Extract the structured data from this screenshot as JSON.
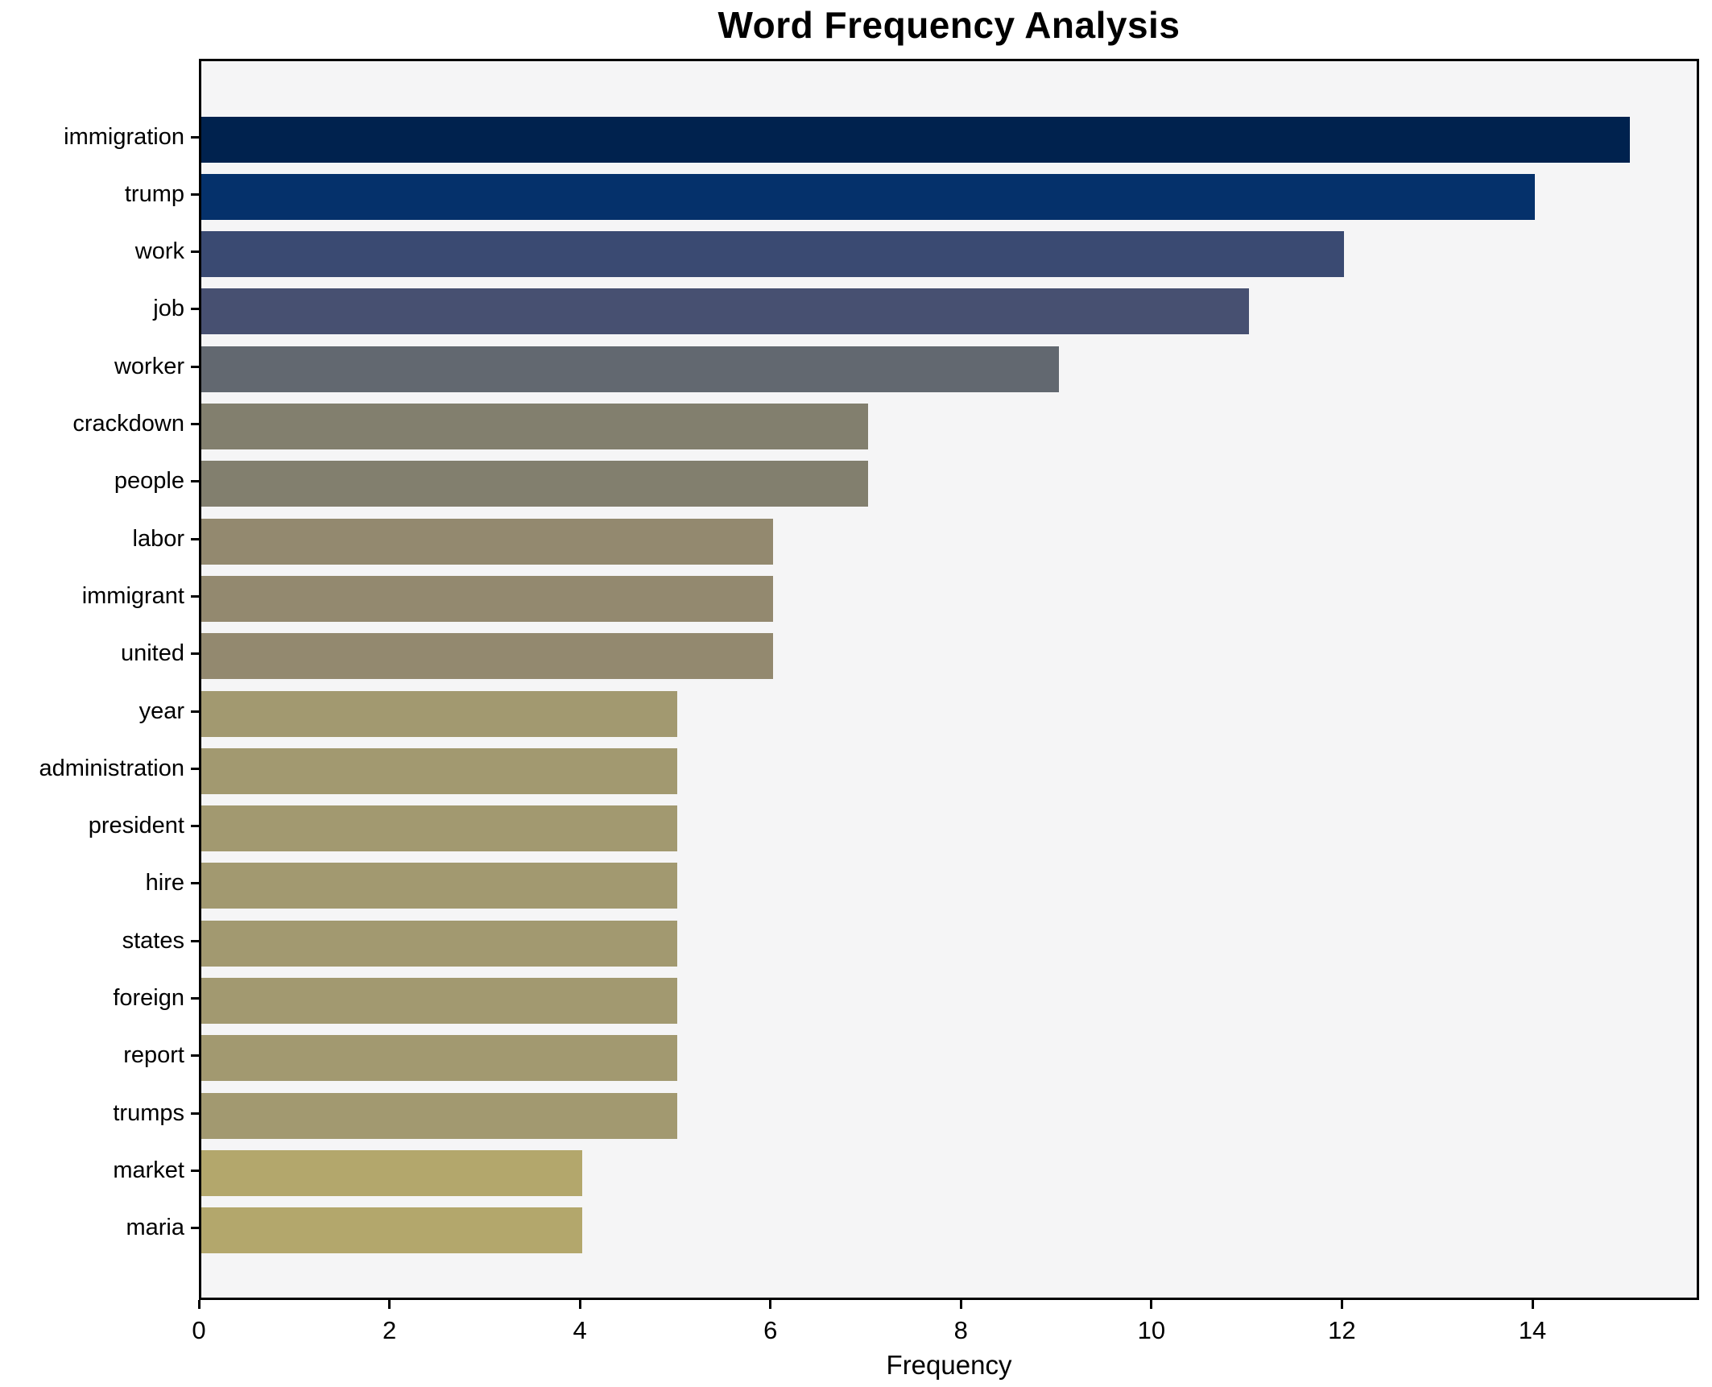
{
  "chart_data": {
    "type": "bar",
    "orientation": "horizontal",
    "title": "Word Frequency Analysis",
    "xlabel": "Frequency",
    "ylabel": "",
    "categories": [
      "immigration",
      "trump",
      "work",
      "job",
      "worker",
      "crackdown",
      "people",
      "labor",
      "immigrant",
      "united",
      "year",
      "administration",
      "president",
      "hire",
      "states",
      "foreign",
      "report",
      "trumps",
      "market",
      "maria"
    ],
    "values": [
      15,
      14,
      12,
      11,
      9,
      7,
      7,
      6,
      6,
      6,
      5,
      5,
      5,
      5,
      5,
      5,
      5,
      5,
      4,
      4
    ],
    "bar_colors": [
      "#00224e",
      "#05316b",
      "#3a4a72",
      "#475071",
      "#626870",
      "#827f6e",
      "#827f6e",
      "#93896f",
      "#93896f",
      "#93896f",
      "#a29970",
      "#a29970",
      "#a29970",
      "#a29970",
      "#a29970",
      "#a29970",
      "#a29970",
      "#a29970",
      "#b3a76c",
      "#b3a76c"
    ],
    "xticks": [
      0,
      2,
      4,
      6,
      8,
      10,
      12,
      14
    ],
    "xlim": [
      0,
      15.75
    ],
    "grid": false,
    "legend_position": "none",
    "plot_bg": "#f5f5f6",
    "figure_bg": "#ffffff",
    "spine_color": "#000000",
    "text_color": "#000000",
    "colormap": "cividis"
  }
}
